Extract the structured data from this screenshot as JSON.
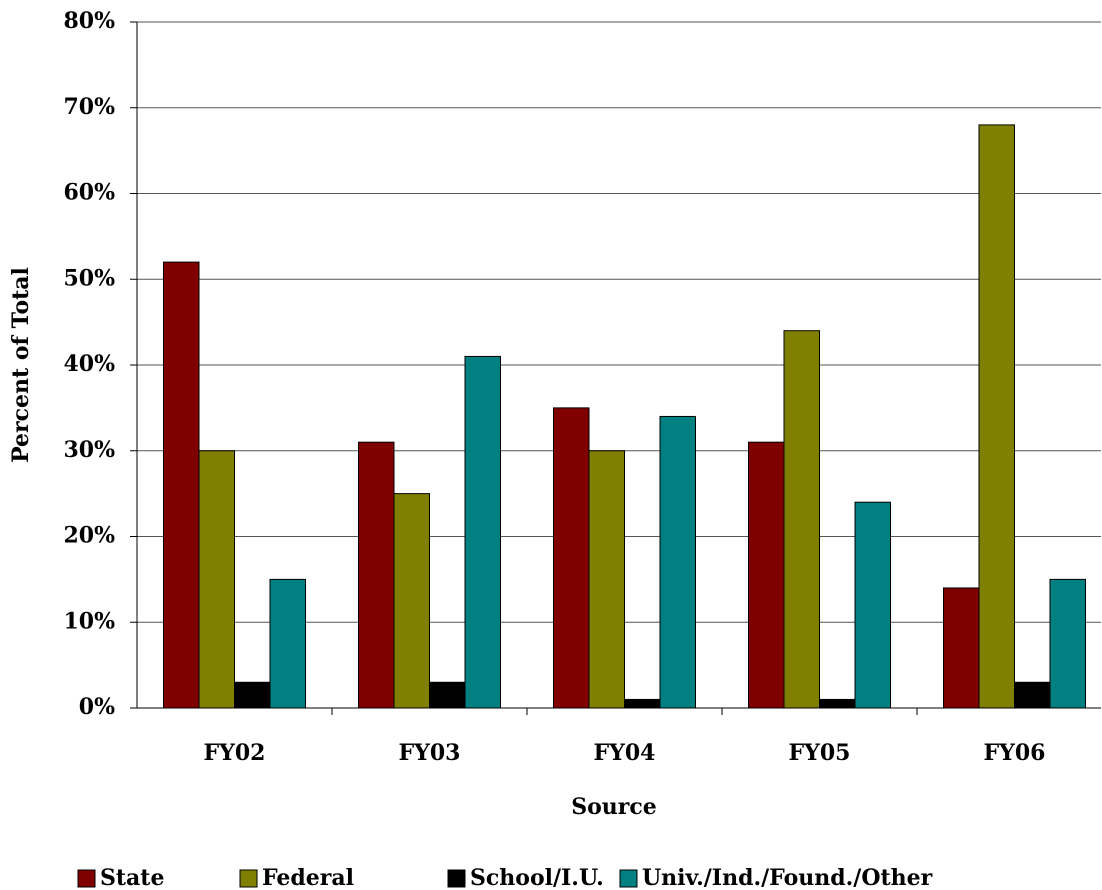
{
  "chart_data": {
    "type": "bar",
    "x_label": "Source",
    "y_label": "Percent of Total",
    "categories": [
      "FY02",
      "FY03",
      "FY04",
      "FY05",
      "FY06"
    ],
    "series": [
      {
        "name": "State",
        "color": "#800000",
        "values": [
          52,
          31,
          35,
          31,
          14
        ]
      },
      {
        "name": "Federal",
        "color": "#808000",
        "values": [
          30,
          25,
          30,
          44,
          68
        ]
      },
      {
        "name": "School/I.U.",
        "color": "#000000",
        "values": [
          3,
          3,
          1,
          1,
          3
        ]
      },
      {
        "name": "Univ./Ind./Found./Other",
        "color": "#008080",
        "values": [
          15,
          41,
          34,
          24,
          15
        ]
      }
    ],
    "ylim": [
      0,
      80
    ],
    "yticks": [
      {
        "value": 0,
        "label": "0%"
      },
      {
        "value": 10,
        "label": "10%"
      },
      {
        "value": 20,
        "label": "20%"
      },
      {
        "value": 30,
        "label": "30%"
      },
      {
        "value": 40,
        "label": "40%"
      },
      {
        "value": 50,
        "label": "50%"
      },
      {
        "value": 60,
        "label": "60%"
      },
      {
        "value": 70,
        "label": "70%"
      },
      {
        "value": 80,
        "label": "80%"
      }
    ],
    "grid": true,
    "legend": "bottom"
  }
}
